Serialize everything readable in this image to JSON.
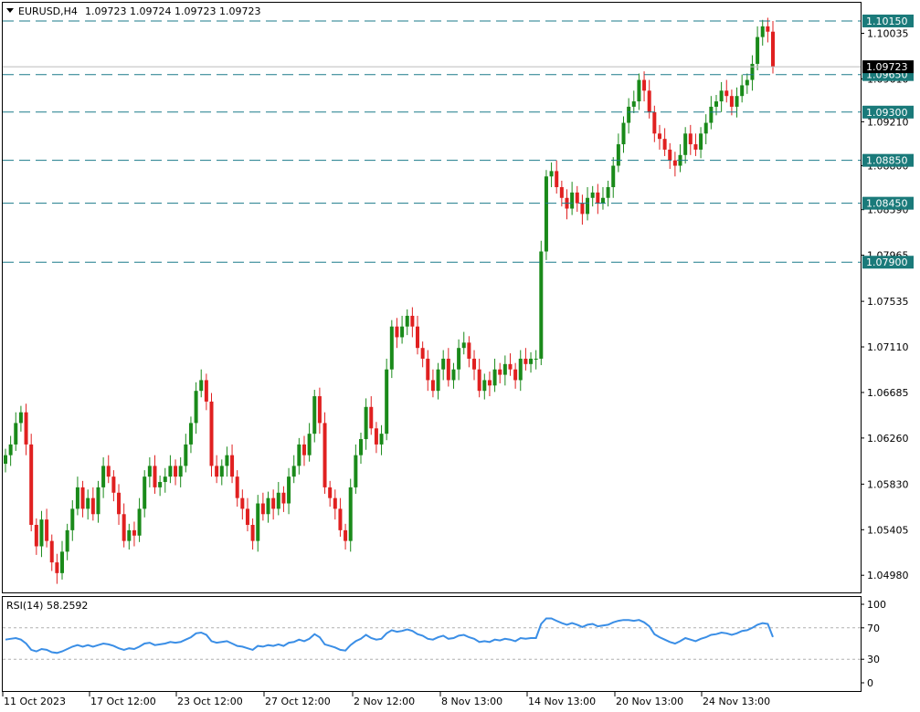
{
  "header": {
    "symbol": "EURUSD,H4",
    "ohlc": "1.09723 1.09724 1.09723 1.09723"
  },
  "rsi": {
    "label": "RSI(14) 58.2592",
    "levels": [
      "100",
      "70",
      "30",
      "0"
    ]
  },
  "colors": {
    "bull": "#1a8a1a",
    "bear": "#e02020",
    "level_line": "#1a7a8a",
    "level_tag": "#1a7a7a",
    "rsi_line": "#3a8ee6",
    "current_tag": "#000000"
  },
  "chart_data": [
    {
      "type": "candlestick",
      "title": "EURUSD,H4",
      "y_ticks": [
        "1.10035",
        "1.09610",
        "1.09210",
        "1.08800",
        "1.08390",
        "1.07965",
        "1.07535",
        "1.07110",
        "1.06685",
        "1.06260",
        "1.05830",
        "1.05405",
        "1.04980"
      ],
      "x_ticks": [
        "11 Oct 2023",
        "17 Oct 12:00",
        "23 Oct 12:00",
        "27 Oct 12:00",
        "2 Nov 12:00",
        "8 Nov 13:00",
        "14 Nov 13:00",
        "20 Nov 13:00",
        "24 Nov 13:00"
      ],
      "levels": [
        "1.10150",
        "1.09650",
        "1.09300",
        "1.08850",
        "1.08450",
        "1.07900"
      ],
      "current_price": "1.09723",
      "ylim": [
        1.0482,
        1.1032
      ],
      "candles_close": [
        1.061,
        1.062,
        1.064,
        1.065,
        1.062,
        1.0545,
        1.0525,
        1.055,
        1.053,
        1.051,
        1.05,
        1.052,
        1.054,
        1.056,
        1.058,
        1.056,
        1.057,
        1.0555,
        1.058,
        1.06,
        1.059,
        1.0575,
        1.0555,
        1.053,
        1.054,
        1.0535,
        1.056,
        1.059,
        1.06,
        1.058,
        1.0585,
        1.059,
        1.06,
        1.059,
        1.06,
        1.062,
        1.064,
        1.067,
        1.068,
        1.066,
        1.06,
        1.059,
        1.06,
        1.061,
        1.059,
        1.057,
        1.056,
        1.0545,
        1.053,
        1.0565,
        1.0555,
        1.057,
        1.056,
        1.0575,
        1.0565,
        1.059,
        1.06,
        1.062,
        1.061,
        1.063,
        1.0665,
        1.064,
        1.058,
        1.057,
        1.056,
        1.054,
        1.053,
        1.058,
        1.061,
        1.0625,
        1.0655,
        1.0635,
        1.062,
        1.063,
        1.069,
        1.073,
        1.072,
        1.073,
        1.074,
        1.073,
        1.071,
        1.07,
        1.068,
        1.067,
        1.069,
        1.07,
        1.068,
        1.069,
        1.071,
        1.0715,
        1.07,
        1.069,
        1.067,
        1.068,
        1.0675,
        1.069,
        1.0685,
        1.0695,
        1.069,
        1.068,
        1.07,
        1.0695,
        1.07,
        1.07,
        1.08,
        1.087,
        1.0875,
        1.086,
        1.085,
        1.084,
        1.0855,
        1.0845,
        1.0835,
        1.085,
        1.0855,
        1.0845,
        1.085,
        1.086,
        1.088,
        1.09,
        1.092,
        1.0935,
        1.094,
        1.096,
        1.095,
        1.093,
        1.091,
        1.0905,
        1.0895,
        1.0885,
        1.088,
        1.089,
        1.091,
        1.09,
        1.0895,
        1.091,
        1.092,
        1.0935,
        1.094,
        1.095,
        1.0945,
        1.0935,
        1.0945,
        1.0955,
        1.096,
        1.0975,
        1.1,
        1.101,
        1.1005,
        1.0972
      ]
    },
    {
      "type": "line",
      "title": "RSI(14)",
      "y_ticks": [
        "100",
        "70",
        "30",
        "0"
      ],
      "levels_dashed": [
        70,
        30
      ],
      "ylim": [
        0,
        100
      ],
      "values": [
        55,
        56,
        57,
        55,
        50,
        42,
        40,
        43,
        42,
        39,
        38,
        40,
        43,
        46,
        48,
        46,
        48,
        46,
        48,
        50,
        49,
        47,
        44,
        42,
        44,
        43,
        46,
        50,
        51,
        48,
        49,
        50,
        52,
        51,
        52,
        55,
        58,
        63,
        64,
        61,
        53,
        51,
        52,
        53,
        50,
        47,
        46,
        44,
        42,
        47,
        46,
        48,
        47,
        49,
        47,
        51,
        52,
        55,
        53,
        56,
        62,
        58,
        49,
        47,
        45,
        42,
        41,
        48,
        53,
        56,
        61,
        57,
        55,
        56,
        63,
        67,
        65,
        66,
        68,
        66,
        62,
        60,
        56,
        55,
        58,
        60,
        56,
        57,
        60,
        61,
        58,
        56,
        52,
        53,
        52,
        55,
        54,
        56,
        55,
        53,
        57,
        56,
        57,
        57,
        75,
        82,
        82,
        79,
        76,
        74,
        76,
        74,
        71,
        74,
        75,
        72,
        73,
        74,
        77,
        79,
        80,
        80,
        79,
        80,
        77,
        72,
        62,
        58,
        55,
        52,
        50,
        53,
        57,
        55,
        53,
        56,
        58,
        61,
        62,
        64,
        63,
        61,
        63,
        66,
        67,
        70,
        74,
        76,
        75,
        58.26
      ]
    }
  ]
}
